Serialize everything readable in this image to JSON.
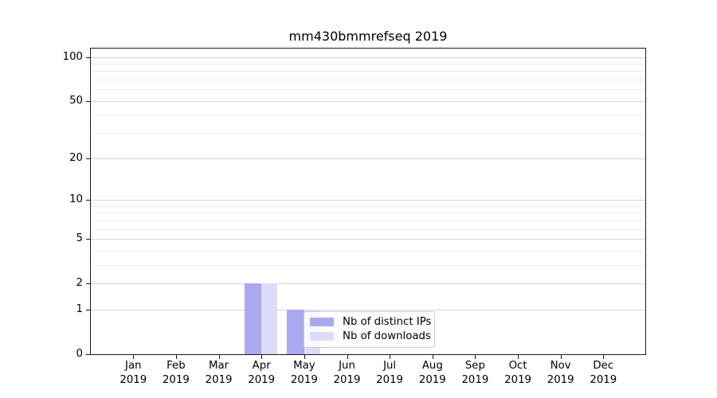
{
  "title": "mm430bmmrefseq 2019",
  "chart_data": {
    "type": "bar",
    "title": "mm430bmmrefseq 2019",
    "categories": [
      "Jan 2019",
      "Feb 2019",
      "Mar 2019",
      "Apr 2019",
      "May 2019",
      "Jun 2019",
      "Jul 2019",
      "Aug 2019",
      "Sep 2019",
      "Oct 2019",
      "Nov 2019",
      "Dec 2019"
    ],
    "series": [
      {
        "name": "Nb of distinct IPs",
        "color": "#a9a9f0",
        "values": [
          0,
          0,
          0,
          2,
          1,
          0,
          0,
          0,
          0,
          0,
          0,
          0
        ]
      },
      {
        "name": "Nb of downloads",
        "color": "#dcdcf8",
        "values": [
          0,
          0,
          0,
          2,
          1,
          0,
          0,
          0,
          0,
          0,
          0,
          0
        ]
      }
    ],
    "xlabel": "",
    "ylabel": "",
    "yscale": "log1p",
    "ylim": [
      0,
      114
    ],
    "yticks_major": [
      0,
      1,
      2,
      5,
      10,
      20,
      50,
      100
    ],
    "yticks_minor": [
      3,
      4,
      6,
      7,
      8,
      9,
      30,
      40,
      60,
      70,
      80,
      90
    ],
    "grid": "horizontal",
    "legend_position": "lower-center"
  },
  "colors": {
    "grid_major": "#d4d4d4",
    "grid_minor": "#ececec",
    "spine": "#1a1a1a",
    "background": "#ffffff"
  }
}
